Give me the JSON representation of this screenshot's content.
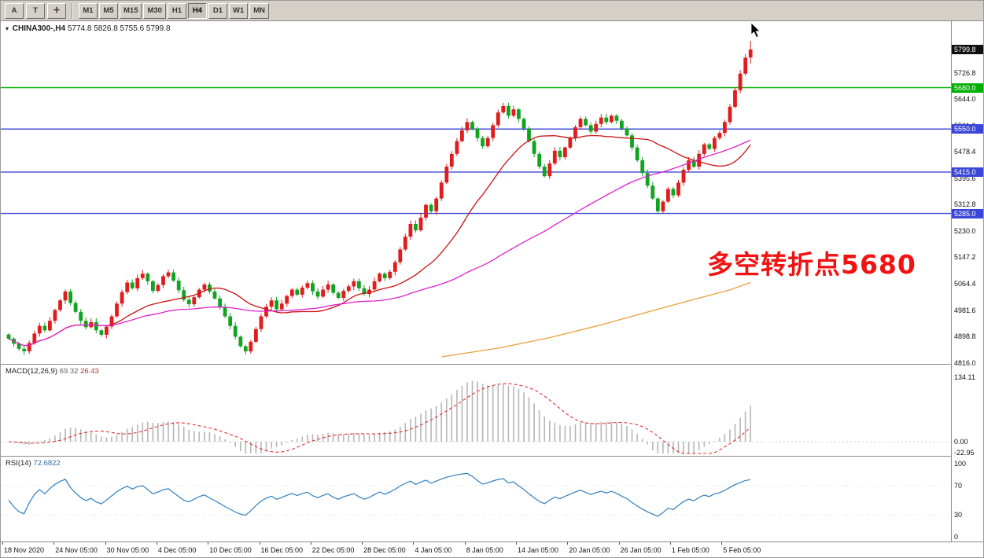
{
  "toolbar": {
    "tools": [
      "A",
      "T",
      "✛"
    ],
    "timeframes": [
      "M1",
      "M5",
      "M15",
      "M30",
      "H1",
      "H4",
      "D1",
      "W1",
      "MN"
    ],
    "active_timeframe": "H4"
  },
  "header": {
    "symbol": "CHINA300-,H4",
    "ohlc": "5774.8 5826.8 5755.6 5799.8"
  },
  "annotation": {
    "text": "多空转折点5680",
    "color": "#f21212"
  },
  "indicators": {
    "macd": {
      "label": "MACD(12,26,9)",
      "value_main": "69.32",
      "value_signal": "26.43",
      "axis_labels": [
        "134.11",
        "0.00",
        "-22.95"
      ]
    },
    "rsi": {
      "label": "RSI(14)",
      "value": "72.6822",
      "axis_labels": [
        "100",
        "70",
        "30",
        "0"
      ]
    }
  },
  "price_axis": {
    "current_price": "5799.8",
    "current_price_bg": "#101010",
    "scale_labels": [
      "5726.8",
      "5644.0",
      "5561.2",
      "5478.4",
      "5395.6",
      "5312.8",
      "5230.0",
      "5147.2",
      "5064.4",
      "4981.6",
      "4898.8",
      "4816.0"
    ],
    "level_badges": [
      {
        "value": "5680.0",
        "color": "#00b000"
      },
      {
        "value": "5550.0",
        "color": "#3a46d8"
      },
      {
        "value": "5415.0",
        "color": "#3a46d8"
      },
      {
        "value": "5285.0",
        "color": "#3a46d8"
      }
    ]
  },
  "chart_data": {
    "type": "candlestick",
    "title": "CHINA300- H4",
    "x_labels": [
      "18 Nov 2020",
      "24 Nov 05:00",
      "30 Nov 05:00",
      "4 Dec 05:00",
      "10 Dec 05:00",
      "16 Dec 05:00",
      "22 Dec 05:00",
      "28 Dec 05:00",
      "4 Jan 05:00",
      "8 Jan 05:00",
      "14 Jan 05:00",
      "20 Jan 05:00",
      "26 Jan 05:00",
      "1 Feb 05:00",
      "5 Feb 05:00"
    ],
    "ylim": [
      4813,
      5889
    ],
    "first_open": 4905,
    "closes": [
      4892,
      4876,
      4860,
      4852,
      4878,
      4908,
      4932,
      4918,
      4948,
      4982,
      5012,
      5040,
      5004,
      4976,
      4948,
      4928,
      4944,
      4918,
      4904,
      4930,
      4962,
      5002,
      5038,
      5068,
      5050,
      5082,
      5096,
      5072,
      5042,
      5060,
      5088,
      5100,
      5074,
      5044,
      5014,
      5000,
      5022,
      5046,
      5062,
      5040,
      5018,
      4992,
      4962,
      4932,
      4898,
      4868,
      4852,
      4882,
      4922,
      4962,
      4992,
      5012,
      4984,
      5002,
      5026,
      5046,
      5030,
      5052,
      5066,
      5040,
      5024,
      5046,
      5062,
      5036,
      5020,
      5042,
      5056,
      5072,
      5050,
      5032,
      5046,
      5072,
      5096,
      5082,
      5102,
      5132,
      5172,
      5212,
      5252,
      5232,
      5272,
      5312,
      5292,
      5332,
      5382,
      5432,
      5472,
      5512,
      5546,
      5572,
      5552,
      5522,
      5496,
      5522,
      5562,
      5602,
      5622,
      5592,
      5612,
      5582,
      5552,
      5512,
      5472,
      5432,
      5402,
      5442,
      5482,
      5462,
      5492,
      5522,
      5556,
      5582,
      5562,
      5542,
      5566,
      5586,
      5572,
      5592,
      5576,
      5552,
      5530,
      5492,
      5452,
      5412,
      5372,
      5332,
      5292,
      5322,
      5362,
      5342,
      5382,
      5422,
      5452,
      5432,
      5472,
      5502,
      5488,
      5522,
      5538,
      5572,
      5620,
      5672,
      5724,
      5774,
      5799.8
    ],
    "last_candle": {
      "open": 5774.8,
      "high": 5826.8,
      "low": 5755.6,
      "close": 5799.8
    },
    "up_color": "#e01c1c",
    "down_color": "#12a322",
    "horizontal_lines": [
      {
        "price": 5680,
        "color": "#00b000",
        "width": 1.6
      },
      {
        "price": 5550,
        "color": "#3a46d8",
        "width": 1.4
      },
      {
        "price": 5415,
        "color": "#3a46d8",
        "width": 1.4
      },
      {
        "price": 5285,
        "color": "#3a46d8",
        "width": 1.4
      }
    ],
    "moving_averages": [
      {
        "name": "fast-ma",
        "color": "#cc1111",
        "period": 20
      },
      {
        "name": "mid-ma",
        "color": "#dd22cc",
        "period": 60
      },
      {
        "name": "slow-ma",
        "color": "#e8a13c",
        "anchors": [
          [
            84,
            4835
          ],
          [
            95,
            4862
          ],
          [
            105,
            4895
          ],
          [
            115,
            4935
          ],
          [
            125,
            4980
          ],
          [
            133,
            5015
          ],
          [
            140,
            5045
          ],
          [
            144,
            5068
          ]
        ]
      }
    ],
    "macd": {
      "fast": 12,
      "slow": 26,
      "signal": 9,
      "current_main": 69.32,
      "current_signal": 26.43,
      "axis": [
        134.11,
        0,
        -22.95
      ],
      "histogram_color": "#b6b6b6",
      "signal_color": "#e03030"
    },
    "rsi": {
      "period": 14,
      "current": 72.6822,
      "levels": [
        70,
        30
      ],
      "color": "#2f7fc1"
    }
  }
}
